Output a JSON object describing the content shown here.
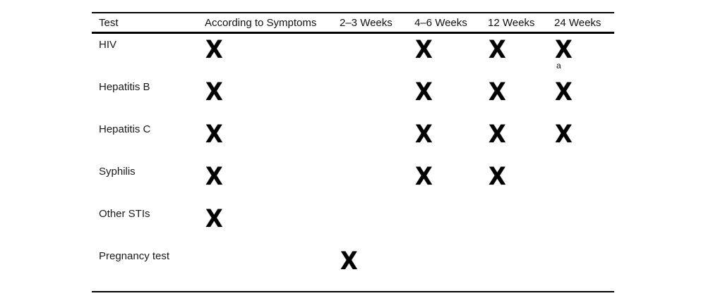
{
  "table": {
    "columns": [
      "Test",
      "According to Symptoms",
      "2–3 Weeks",
      "4–6 Weeks",
      "12 Weeks",
      "24 Weeks"
    ],
    "rows": [
      {
        "label": "HIV",
        "marks": [
          "X",
          "",
          "X",
          "X",
          "X"
        ],
        "footnote": "a"
      },
      {
        "label": "Hepatitis B",
        "marks": [
          "X",
          "",
          "X",
          "X",
          "X"
        ]
      },
      {
        "label": "Hepatitis C",
        "marks": [
          "X",
          "",
          "X",
          "X",
          "X"
        ]
      },
      {
        "label": "Syphilis",
        "marks": [
          "X",
          "",
          "X",
          "X",
          ""
        ]
      },
      {
        "label": "Other STIs",
        "marks": [
          "X",
          "",
          "",
          "",
          ""
        ]
      },
      {
        "label": "Pregnancy test",
        "marks": [
          "",
          "X",
          "",
          "",
          ""
        ]
      }
    ],
    "mark_glyph": "X",
    "footnote_marker": "a",
    "rule_color": "#000000",
    "text_color": "#1a1a1a"
  },
  "chart_data": {
    "type": "table",
    "title": "",
    "columns": [
      "Test",
      "According to Symptoms",
      "2–3 Weeks",
      "4–6 Weeks",
      "12 Weeks",
      "24 Weeks"
    ],
    "rows": [
      [
        "HIV",
        true,
        false,
        true,
        true,
        true
      ],
      [
        "Hepatitis B",
        true,
        false,
        true,
        true,
        true
      ],
      [
        "Hepatitis C",
        true,
        false,
        true,
        true,
        true
      ],
      [
        "Syphilis",
        true,
        false,
        true,
        true,
        false
      ],
      [
        "Other STIs",
        true,
        false,
        false,
        false,
        false
      ],
      [
        "Pregnancy test",
        false,
        true,
        false,
        false,
        false
      ]
    ],
    "annotations": [
      "a footnote marker on HIV at 24 Weeks"
    ]
  }
}
